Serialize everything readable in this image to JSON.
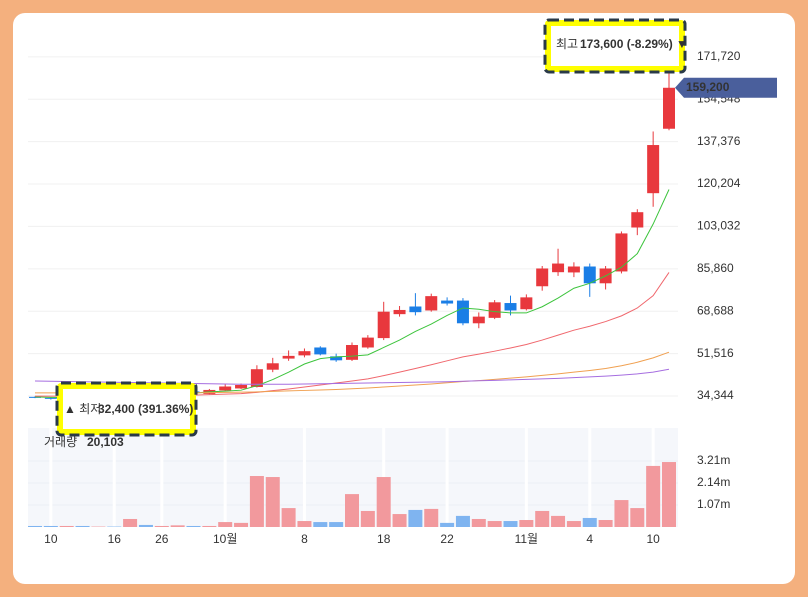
{
  "chart_data": {
    "type": "candlestick",
    "categories": [
      null,
      "10",
      null,
      null,
      null,
      "16",
      null,
      null,
      "26",
      null,
      null,
      null,
      "10월",
      null,
      null,
      null,
      null,
      "8",
      null,
      null,
      null,
      null,
      "18",
      null,
      null,
      null,
      "22",
      null,
      null,
      null,
      null,
      "11월",
      null,
      null,
      null,
      "4",
      null,
      null,
      null,
      "10",
      null
    ],
    "open": [
      34000,
      33600,
      33000,
      33600,
      33200,
      33800,
      34000,
      35800,
      34600,
      35200,
      36200,
      35200,
      36600,
      37400,
      38000,
      45000,
      49500,
      50800,
      54000,
      50400,
      49000,
      54000,
      57800,
      67500,
      70600,
      69000,
      73000,
      73000,
      63800,
      66000,
      72000,
      69500,
      78800,
      84500,
      84400,
      86800,
      80000,
      84800,
      102600,
      116500,
      142600
    ],
    "high": [
      34200,
      33800,
      33900,
      33900,
      34000,
      34100,
      36500,
      36200,
      35800,
      36800,
      36600,
      37200,
      39000,
      39400,
      46800,
      49800,
      52800,
      53600,
      54500,
      51500,
      56000,
      59000,
      72500,
      70800,
      76000,
      75800,
      74300,
      74000,
      68200,
      73200,
      75000,
      75500,
      87000,
      94000,
      88500,
      88000,
      87000,
      101000,
      110000,
      141500,
      173600
    ],
    "low": [
      33500,
      32900,
      32400,
      32900,
      33000,
      33100,
      33800,
      34800,
      34300,
      35000,
      35400,
      35000,
      36300,
      37200,
      37800,
      44000,
      48600,
      50000,
      50800,
      48200,
      48500,
      53500,
      57000,
      66500,
      67000,
      68500,
      71000,
      63000,
      61800,
      65500,
      67000,
      69000,
      77000,
      83000,
      82500,
      74500,
      77500,
      84000,
      99500,
      111000,
      142000
    ],
    "close": [
      33700,
      33200,
      33500,
      33100,
      33600,
      33300,
      36000,
      35000,
      35400,
      36300,
      35600,
      36800,
      38200,
      38800,
      45200,
      47600,
      50600,
      52500,
      51200,
      48800,
      55000,
      58000,
      68500,
      69200,
      68300,
      74800,
      71800,
      63800,
      66500,
      72300,
      69000,
      74300,
      86000,
      88000,
      86800,
      80000,
      86000,
      100200,
      108800,
      136000,
      159200
    ],
    "up_color": "#e8383d",
    "down_color": "#1a7ee6",
    "lines": [
      {
        "color": "#3cc43c",
        "values": [
          34000,
          33800,
          33700,
          33600,
          33500,
          33400,
          33600,
          34300,
          34700,
          35100,
          35500,
          36000,
          36300,
          36700,
          38500,
          41000,
          44000,
          47300,
          49500,
          50200,
          50500,
          51000,
          54000,
          57000,
          60500,
          63500,
          67000,
          70000,
          69500,
          68500,
          68000,
          68000,
          70500,
          74000,
          78000,
          80000,
          83000,
          86500,
          92000,
          104000,
          118000
        ]
      },
      {
        "color": "#f0676d",
        "values": [
          34300,
          34300,
          34300,
          34300,
          34300,
          34300,
          34300,
          34400,
          34500,
          34600,
          34700,
          34900,
          35100,
          35300,
          35800,
          36500,
          37200,
          38000,
          38800,
          39600,
          40400,
          41300,
          42600,
          44000,
          45500,
          47000,
          48600,
          50200,
          51300,
          52500,
          53800,
          55200,
          57000,
          59000,
          61000,
          62600,
          64500,
          66800,
          70000,
          75000,
          84400
        ]
      },
      {
        "color": "#f0a050",
        "values": [
          35600,
          35600,
          35600,
          35600,
          35600,
          35600,
          35600,
          35600,
          35600,
          35600,
          35600,
          35700,
          35800,
          35900,
          36000,
          36200,
          36400,
          36600,
          36800,
          37000,
          37300,
          37600,
          38000,
          38400,
          38800,
          39200,
          39700,
          40200,
          40600,
          41100,
          41600,
          42100,
          42700,
          43300,
          44000,
          44700,
          45500,
          46600,
          48000,
          49800,
          52100
        ]
      },
      {
        "color": "#a66ee0",
        "values": [
          40400,
          40300,
          40200,
          40100,
          40000,
          39900,
          39800,
          39700,
          39600,
          39500,
          39400,
          39300,
          39200,
          39100,
          39100,
          39100,
          39100,
          39200,
          39300,
          39400,
          39500,
          39600,
          39700,
          39800,
          39900,
          40000,
          40100,
          40300,
          40500,
          40700,
          40900,
          41100,
          41300,
          41500,
          41800,
          42100,
          42400,
          42800,
          43300,
          44000,
          45200
        ]
      }
    ],
    "ylim": [
      22600,
      182600
    ],
    "yticks": [
      {
        "value": 34344,
        "label": "34,344"
      },
      {
        "value": 51516,
        "label": "51,516"
      },
      {
        "value": 68688,
        "label": "68,688"
      },
      {
        "value": 85860,
        "label": "85,860"
      },
      {
        "value": 103032,
        "label": "103,032"
      },
      {
        "value": 120204,
        "label": "120,204"
      },
      {
        "value": 137376,
        "label": "137,376"
      },
      {
        "value": 154548,
        "label": "154,548"
      },
      {
        "value": 171720,
        "label": "171,720"
      }
    ],
    "last_price": {
      "value": 159200,
      "label": "159,200"
    },
    "high_annotation": {
      "label": "최고",
      "text": "173,600 (-8.29%) ▼"
    },
    "low_annotation": {
      "label": "▲ 최저",
      "text": "32,400 (391.36%)"
    },
    "volume": {
      "title": "거래량",
      "current": "20,103",
      "values": [
        50000,
        50000,
        50000,
        50000,
        20000,
        20000,
        390000,
        100000,
        50000,
        80000,
        50000,
        50000,
        240000,
        200000,
        2480000,
        2430000,
        920000,
        290000,
        240000,
        240000,
        1600000,
        780000,
        2430000,
        630000,
        830000,
        880000,
        200000,
        540000,
        390000,
        290000,
        290000,
        340000,
        780000,
        540000,
        290000,
        440000,
        340000,
        1310000,
        920000,
        2970000,
        3160000
      ],
      "up_color": "#f2999d",
      "down_color": "#7fb4f0",
      "ylim": [
        0,
        4815000
      ],
      "yticks": [
        {
          "value": 1070000,
          "label": "1.07m"
        },
        {
          "value": 2140000,
          "label": "2.14m"
        },
        {
          "value": 3210000,
          "label": "3.21m"
        }
      ]
    }
  }
}
